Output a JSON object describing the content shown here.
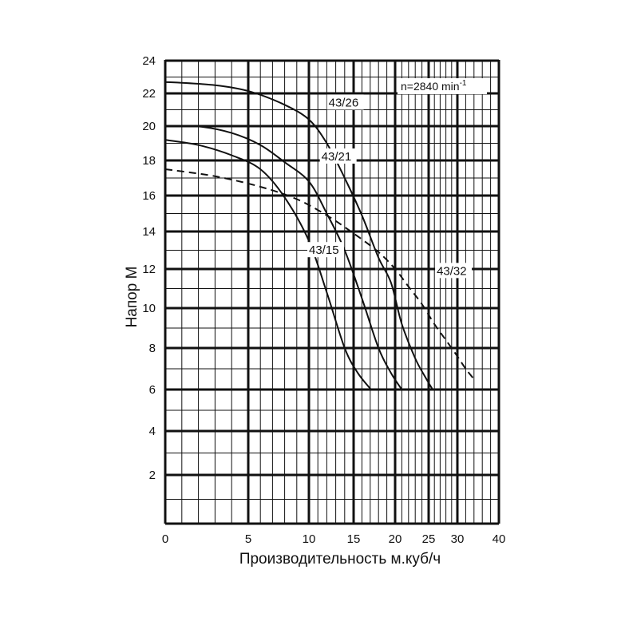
{
  "chart_data": {
    "type": "line",
    "xlabel": "Производительность м.куб/ч",
    "ylabel": "Напор М",
    "xlim": [
      0,
      40
    ],
    "ylim": [
      0,
      24
    ],
    "grid": true,
    "x_scale": "nonlinear (compressed at high flow)",
    "y_scale": "nonlinear (compressed at low head)",
    "x_ticks": [
      0,
      5,
      10,
      15,
      20,
      25,
      30,
      40
    ],
    "y_ticks": [
      2,
      4,
      6,
      8,
      10,
      12,
      14,
      16,
      18,
      20,
      22,
      24
    ],
    "annotation": {
      "text": "n=2840 min",
      "superscript": "-1"
    },
    "series": [
      {
        "name": "43/26",
        "style": "solid",
        "points": [
          [
            0,
            22.7
          ],
          [
            3,
            22.5
          ],
          [
            5.2,
            22.1
          ],
          [
            8,
            21.3
          ],
          [
            10,
            20.4
          ],
          [
            12,
            19.0
          ],
          [
            14,
            17.0
          ],
          [
            16,
            14.9
          ],
          [
            18,
            12.6
          ],
          [
            19.5,
            11.3
          ],
          [
            21,
            9.2
          ],
          [
            23,
            7.5
          ],
          [
            24.5,
            6.6
          ],
          [
            25.7,
            6.0
          ]
        ]
      },
      {
        "name": "43/21",
        "style": "solid",
        "points": [
          [
            0,
            20.0
          ],
          [
            2,
            19.98
          ],
          [
            4,
            19.6
          ],
          [
            6,
            18.9
          ],
          [
            8,
            17.9
          ],
          [
            10,
            16.8
          ],
          [
            12,
            15.0
          ],
          [
            14,
            13.0
          ],
          [
            16,
            10.5
          ],
          [
            18,
            8.0
          ],
          [
            19.5,
            6.8
          ],
          [
            21,
            6.0
          ]
        ]
      },
      {
        "name": "43/15",
        "style": "solid",
        "points": [
          [
            0,
            19.2
          ],
          [
            2,
            18.9
          ],
          [
            4,
            18.3
          ],
          [
            6,
            17.5
          ],
          [
            8,
            15.9
          ],
          [
            10,
            13.5
          ],
          [
            12,
            10.8
          ],
          [
            14,
            8.0
          ],
          [
            15.5,
            6.8
          ],
          [
            17.1,
            6.0
          ]
        ]
      },
      {
        "name": "43/32",
        "style": "dashed",
        "points": [
          [
            0,
            17.5
          ],
          [
            3,
            17.1
          ],
          [
            6,
            16.5
          ],
          [
            9,
            15.8
          ],
          [
            12,
            14.9
          ],
          [
            15,
            13.9
          ],
          [
            18,
            12.9
          ],
          [
            20,
            12.0
          ],
          [
            22,
            11.1
          ],
          [
            24,
            10.2
          ],
          [
            26,
            9.2
          ],
          [
            28,
            8.4
          ],
          [
            30,
            7.6
          ],
          [
            32,
            7.0
          ],
          [
            34,
            6.5
          ]
        ]
      }
    ]
  }
}
